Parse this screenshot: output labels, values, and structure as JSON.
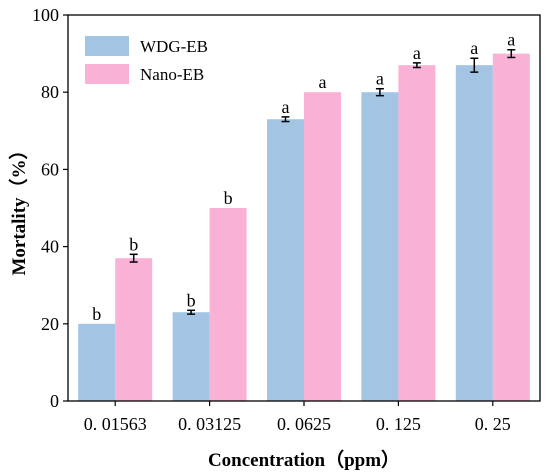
{
  "chart_data": {
    "type": "bar",
    "title": "",
    "xlabel": "Concentration（ppm）",
    "ylabel": "Mortality（%）",
    "ylim": [
      0,
      100
    ],
    "yticks": [
      "0",
      "20",
      "40",
      "60",
      "80",
      "100"
    ],
    "categories": [
      "0.01563",
      "0.03125",
      "0.0625",
      "0.125",
      "0.25"
    ],
    "series": [
      {
        "name": "WDG-EB",
        "color": "#a3c4e3",
        "values": [
          20,
          23,
          73,
          80,
          87
        ],
        "errors": [
          0,
          0.5,
          0.6,
          0.9,
          1.8
        ],
        "labels": [
          "b",
          "b",
          "a",
          "a",
          "a"
        ]
      },
      {
        "name": "Nano-EB",
        "color": "#f9b2d6",
        "values": [
          37,
          50,
          80,
          87,
          90
        ],
        "errors": [
          1.0,
          0,
          0,
          0.6,
          1.0
        ],
        "labels": [
          "b",
          "b",
          "a",
          "a",
          "a"
        ]
      }
    ],
    "legend_position": "top-left",
    "grid": false
  }
}
